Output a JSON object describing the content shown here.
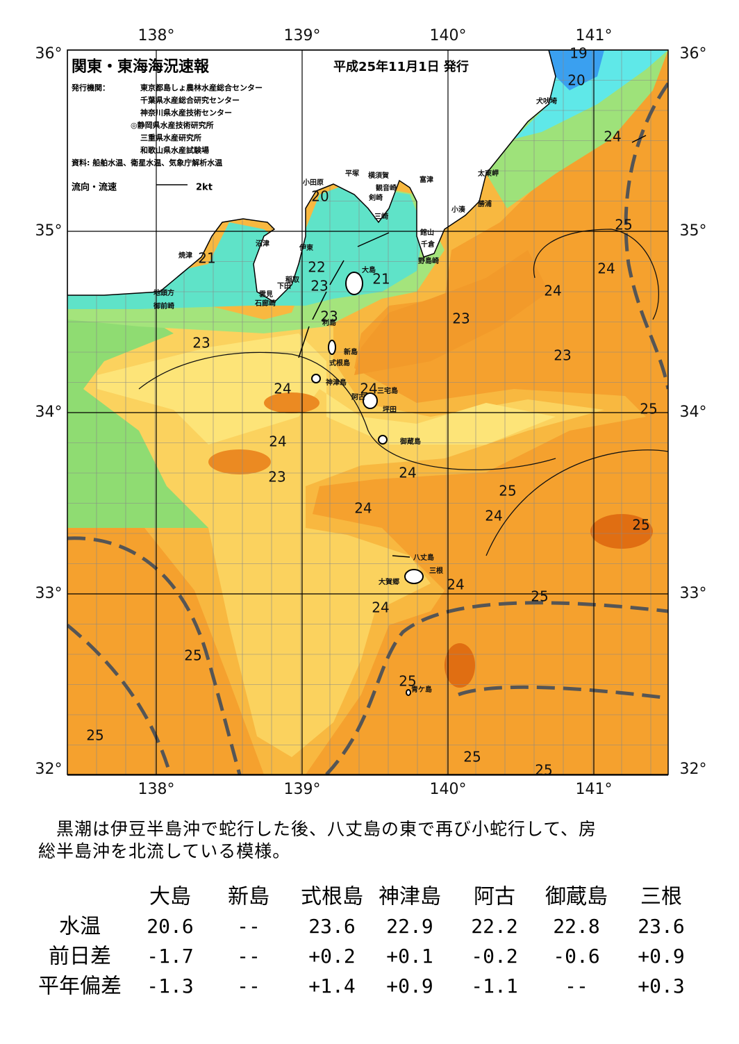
{
  "header": {
    "title": "関東・東海海況速報",
    "issued": "平成25年11月1日 発行",
    "agency_label": "発行機関：",
    "agencies": [
      "東京都島しょ農林水産総合センター",
      "千葉県水産総合研究センター",
      "神奈川県水産技術センター",
      "◎静岡県水産技術研究所",
      "三重県水産研究所",
      "和歌山県水産試験場"
    ],
    "source": "資料: 船舶水温、衛星水温、気象庁解析水温",
    "legend_label": "流向・流速",
    "legend_speed": "2kt"
  },
  "map": {
    "lon_ticks": [
      {
        "value": 138,
        "label": "138°"
      },
      {
        "value": 139,
        "label": "139°"
      },
      {
        "value": 140,
        "label": "140°"
      },
      {
        "value": 141,
        "label": "141°"
      }
    ],
    "lat_ticks": [
      {
        "value": 36,
        "label": "36°"
      },
      {
        "value": 35,
        "label": "35°"
      },
      {
        "value": 34,
        "label": "34°"
      },
      {
        "value": 33,
        "label": "33°"
      },
      {
        "value": 32,
        "label": "32°"
      }
    ],
    "isotherm_labels": [
      19,
      20,
      24,
      25,
      24,
      24,
      23,
      23,
      25,
      21,
      20,
      22,
      23,
      21,
      23,
      23,
      24,
      24,
      24,
      23,
      24,
      25,
      24,
      24,
      25,
      24,
      25,
      24,
      25,
      25,
      25,
      25,
      25
    ],
    "place_names": [
      "犬吠埼",
      "太東岬",
      "勝浦",
      "富津",
      "小湊",
      "横須賀",
      "観音崎",
      "剣崎",
      "三崎",
      "平塚",
      "小田原",
      "館山",
      "千倉",
      "野島崎",
      "沼津",
      "伊東",
      "焼津",
      "稲取",
      "下田",
      "雲見",
      "石廊崎",
      "地頭方",
      "御前崎",
      "大島",
      "利島",
      "新島",
      "式根島",
      "神津島",
      "三宅島",
      "阿古",
      "坪田",
      "御蔵島",
      "八丈島",
      "三根",
      "大賀郷",
      "青ケ島"
    ]
  },
  "summary": [
    "黒潮は伊豆半島沖で蛇行した後、八丈島の東で再び小蛇行して、房",
    "総半島沖を北流している模様。"
  ],
  "table": {
    "columns": [
      "大島",
      "新島",
      "式根島",
      "神津島",
      "阿古",
      "御蔵島",
      "三根"
    ],
    "rows": [
      {
        "label": "水温",
        "cells": [
          "20.6",
          "--",
          "23.6",
          "22.9",
          "22.2",
          "22.8",
          "23.6"
        ]
      },
      {
        "label": "前日差",
        "cells": [
          "-1.7",
          "--",
          "+0.2",
          "+0.1",
          "-0.2",
          "-0.6",
          "+0.9"
        ]
      },
      {
        "label": "平年偏差",
        "cells": [
          "-1.3",
          "--",
          "+1.4",
          "+0.9",
          "-1.1",
          "--",
          "+0.3"
        ]
      }
    ]
  }
}
